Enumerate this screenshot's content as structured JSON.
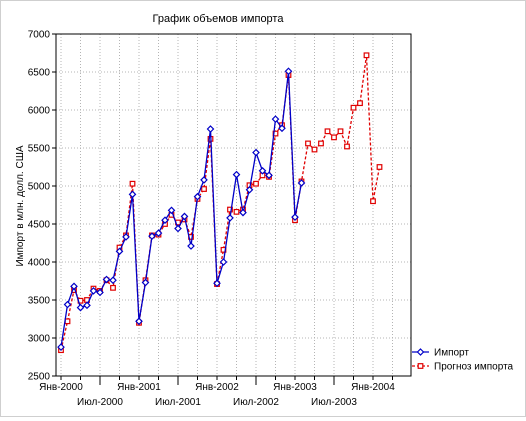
{
  "chart_data": {
    "type": "line",
    "title": "График объемов импорта",
    "ylabel": "Импорт в млн. долл. США",
    "xlabel": "",
    "ylim": [
      2500,
      7000
    ],
    "yticks": [
      2500,
      3000,
      3500,
      4000,
      4500,
      5000,
      5500,
      6000,
      6500,
      7000
    ],
    "x_tick_labels": [
      {
        "label": "Янв-2000",
        "index": 0,
        "row": 0
      },
      {
        "label": "Июл-2000",
        "index": 6,
        "row": 1
      },
      {
        "label": "Янв-2001",
        "index": 12,
        "row": 0
      },
      {
        "label": "Июл-2001",
        "index": 18,
        "row": 1
      },
      {
        "label": "Янв-2002",
        "index": 24,
        "row": 0
      },
      {
        "label": "Июл-2002",
        "index": 30,
        "row": 1
      },
      {
        "label": "Янв-2003",
        "index": 36,
        "row": 0
      },
      {
        "label": "Июл-2003",
        "index": 42,
        "row": 1
      },
      {
        "label": "Янв-2004",
        "index": 48,
        "row": 0
      }
    ],
    "x_categories": [
      "Янв-2000",
      "Фев-2000",
      "Мар-2000",
      "Апр-2000",
      "Май-2000",
      "Июн-2000",
      "Июл-2000",
      "Авг-2000",
      "Сен-2000",
      "Окт-2000",
      "Ноя-2000",
      "Дек-2000",
      "Янв-2001",
      "Фев-2001",
      "Мар-2001",
      "Апр-2001",
      "Май-2001",
      "Июн-2001",
      "Июл-2001",
      "Авг-2001",
      "Сен-2001",
      "Окт-2001",
      "Ноя-2001",
      "Дек-2001",
      "Янв-2002",
      "Фев-2002",
      "Мар-2002",
      "Апр-2002",
      "Май-2002",
      "Июн-2002",
      "Июл-2002",
      "Авг-2002",
      "Сен-2002",
      "Окт-2002",
      "Ноя-2002",
      "Дек-2002",
      "Янв-2003",
      "Фев-2003",
      "Мар-2003",
      "Апр-2003",
      "Май-2003",
      "Июн-2003",
      "Июл-2003",
      "Авг-2003",
      "Сен-2003",
      "Окт-2003",
      "Ноя-2003",
      "Дек-2003",
      "Янв-2004",
      "Фев-2004",
      "Мар-2004",
      "Апр-2004",
      "Май-2004"
    ],
    "grid": true,
    "legend_position": "bottom-right",
    "series": [
      {
        "name": "Импорт",
        "color": "#0000c8",
        "style": "solid",
        "marker": "diamond",
        "start_index": 0,
        "values": [
          2880,
          3440,
          3680,
          3400,
          3430,
          3620,
          3600,
          3770,
          3760,
          4140,
          4330,
          4890,
          3220,
          3730,
          4340,
          4380,
          4550,
          4680,
          4440,
          4600,
          4210,
          4860,
          5080,
          5750,
          3720,
          4000,
          4580,
          5150,
          4650,
          4950,
          5440,
          5200,
          5140,
          5880,
          5760,
          6510,
          4590,
          5040
        ]
      },
      {
        "name": "Прогноз импорта",
        "color": "#e00000",
        "style": "dashed",
        "marker": "square",
        "start_index": 0,
        "values": [
          2840,
          3220,
          3630,
          3490,
          3500,
          3650,
          3620,
          3760,
          3660,
          4190,
          4350,
          5030,
          3200,
          3760,
          4350,
          4360,
          4500,
          4620,
          4520,
          4560,
          4330,
          4830,
          4960,
          5620,
          3710,
          4160,
          4690,
          4660,
          4690,
          5010,
          5030,
          5140,
          5120,
          5690,
          5800,
          6460,
          4550,
          5060,
          5560,
          5480,
          5560,
          5720,
          5640,
          5720,
          5520,
          6030,
          6090,
          6720,
          4800,
          5250
        ]
      }
    ]
  }
}
